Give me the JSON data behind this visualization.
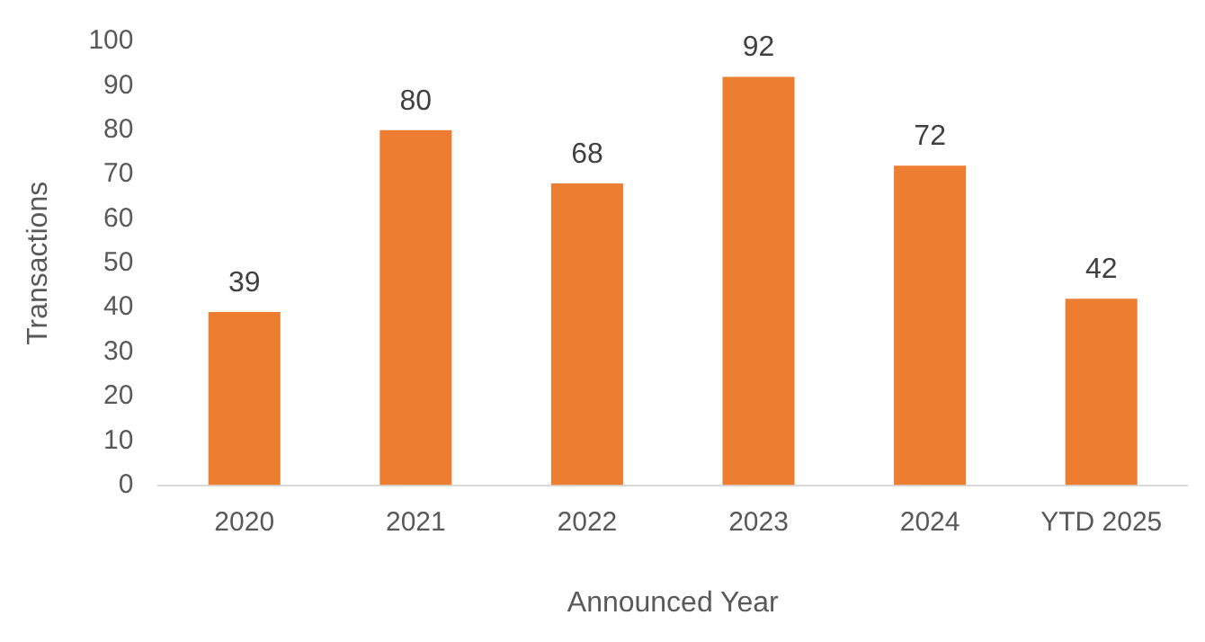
{
  "chart_data": {
    "type": "bar",
    "xlabel": "Announced Year",
    "ylabel": "Transactions",
    "categories": [
      "2020",
      "2021",
      "2022",
      "2023",
      "2024",
      "YTD 2025"
    ],
    "values": [
      39,
      80,
      68,
      92,
      72,
      42
    ],
    "color": "#ed7d31",
    "ylim": [
      0,
      100
    ],
    "yticks": [
      0,
      10,
      20,
      30,
      40,
      50,
      60,
      70,
      80,
      90,
      100
    ],
    "grid": false,
    "data_labels": true
  }
}
